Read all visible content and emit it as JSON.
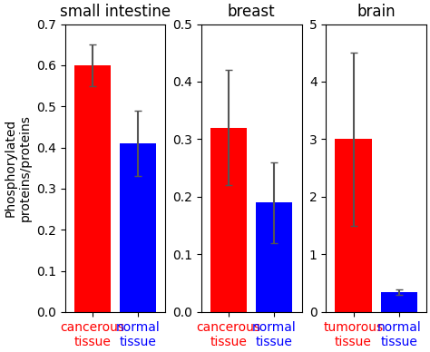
{
  "chart_data": [
    {
      "type": "bar",
      "title": "small intestine",
      "categories": [
        "cancerous\ntissue",
        "normal\ntissue"
      ],
      "values": [
        0.6,
        0.41
      ],
      "errors": [
        0.05,
        0.08
      ],
      "colors": [
        "#ff0000",
        "#0000ff"
      ],
      "ylabel": "Phosphorylated\nproteins/proteins",
      "ylim": [
        0,
        0.7
      ],
      "yticks": [
        0.0,
        0.1,
        0.2,
        0.3,
        0.4,
        0.5,
        0.6,
        0.7
      ]
    },
    {
      "type": "bar",
      "title": "breast",
      "categories": [
        "cancerous\ntissue",
        "normal\ntissue"
      ],
      "values": [
        0.32,
        0.19
      ],
      "errors": [
        0.1,
        0.07
      ],
      "colors": [
        "#ff0000",
        "#0000ff"
      ],
      "ylim": [
        0,
        0.5
      ],
      "yticks": [
        0.0,
        0.1,
        0.2,
        0.3,
        0.4,
        0.5
      ]
    },
    {
      "type": "bar",
      "title": "brain",
      "categories": [
        "tumorous\ntissue",
        "normal\ntissue"
      ],
      "values": [
        3.0,
        0.35
      ],
      "errors": [
        1.5,
        0.05
      ],
      "colors": [
        "#ff0000",
        "#0000ff"
      ],
      "ylim": [
        0,
        5
      ],
      "yticks": [
        0,
        1,
        2,
        3,
        4,
        5
      ]
    }
  ]
}
